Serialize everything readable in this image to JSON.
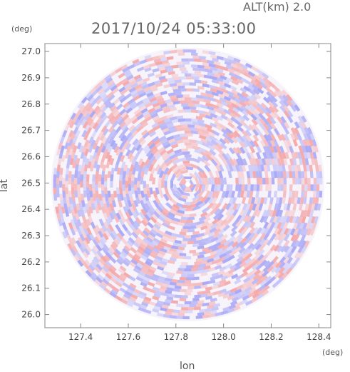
{
  "header": {
    "altitude_label": "ALT(km) 2.0",
    "timestamp": "2017/10/24 05:33:00"
  },
  "chart_data": {
    "type": "heatmap",
    "title": "2017/10/24 05:33:00",
    "subtitle": "ALT(km) 2.0",
    "xlabel": "lon",
    "ylabel": "lat",
    "xunit": "(deg)",
    "yunit": "(deg)",
    "xlim": [
      127.25,
      128.45
    ],
    "ylim": [
      25.95,
      27.03
    ],
    "xticks": [
      "127.4",
      "127.6",
      "127.8",
      "128.0",
      "128.2",
      "128.4"
    ],
    "yticks": [
      "26.0",
      "26.1",
      "26.2",
      "26.3",
      "26.4",
      "26.5",
      "26.6",
      "26.7",
      "26.8",
      "26.9",
      "27.0"
    ],
    "center": {
      "lon": 127.85,
      "lat": 26.495
    },
    "radius_deg_lat": 0.52,
    "colors": {
      "positive": "#f4a6a6",
      "negative": "#a8a8f4",
      "neutral": "#ffffff"
    }
  }
}
